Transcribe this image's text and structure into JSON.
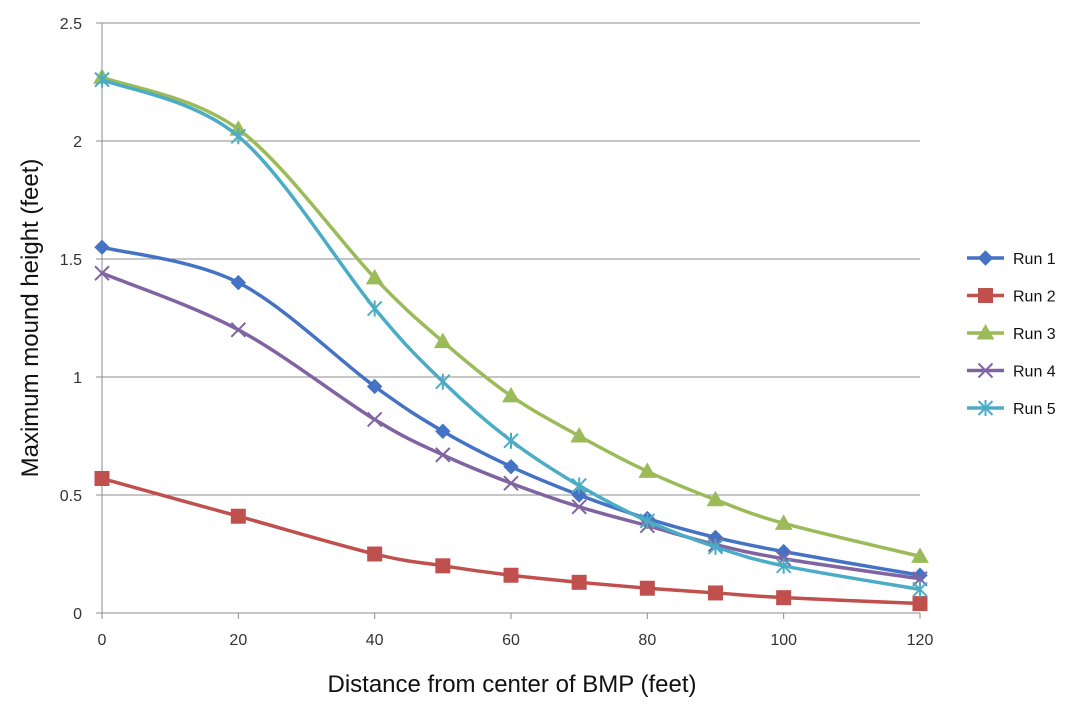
{
  "chart_data": {
    "type": "line",
    "title": "",
    "xlabel": "Distance from center of BMP (feet)",
    "ylabel": "Maximum mound height (feet)",
    "xlim": [
      0,
      120
    ],
    "ylim": [
      0,
      2.5
    ],
    "xticks": [
      0,
      20,
      40,
      60,
      80,
      100,
      120
    ],
    "yticks": [
      0,
      0.5,
      1,
      1.5,
      2,
      2.5
    ],
    "xtick_labels": [
      "0",
      "20",
      "40",
      "60",
      "80",
      "100",
      "120"
    ],
    "ytick_labels": [
      "0",
      "0.5",
      "1",
      "1.5",
      "2",
      "2.5"
    ],
    "grid": "horizontal",
    "legend_position": "right",
    "x": [
      0,
      20,
      40,
      50,
      60,
      70,
      80,
      90,
      100,
      120
    ],
    "series": [
      {
        "name": "Run 1",
        "color": "#4472c4",
        "marker": "diamond",
        "values": [
          1.55,
          1.4,
          0.96,
          0.77,
          0.62,
          0.5,
          0.4,
          0.32,
          0.26,
          0.16
        ]
      },
      {
        "name": "Run 2",
        "color": "#c0504d",
        "marker": "square",
        "values": [
          0.57,
          0.41,
          0.25,
          0.2,
          0.16,
          0.13,
          0.105,
          0.085,
          0.065,
          0.04
        ]
      },
      {
        "name": "Run 3",
        "color": "#9bbb59",
        "marker": "triangle",
        "values": [
          2.27,
          2.05,
          1.42,
          1.15,
          0.92,
          0.75,
          0.6,
          0.48,
          0.38,
          0.24
        ]
      },
      {
        "name": "Run 4",
        "color": "#8064a2",
        "marker": "x",
        "values": [
          1.44,
          1.2,
          0.82,
          0.67,
          0.55,
          0.45,
          0.37,
          0.29,
          0.23,
          0.145
        ]
      },
      {
        "name": "Run 5",
        "color": "#4bacc6",
        "marker": "star",
        "values": [
          2.26,
          2.02,
          1.29,
          0.98,
          0.73,
          0.54,
          0.39,
          0.28,
          0.2,
          0.1
        ]
      }
    ]
  }
}
